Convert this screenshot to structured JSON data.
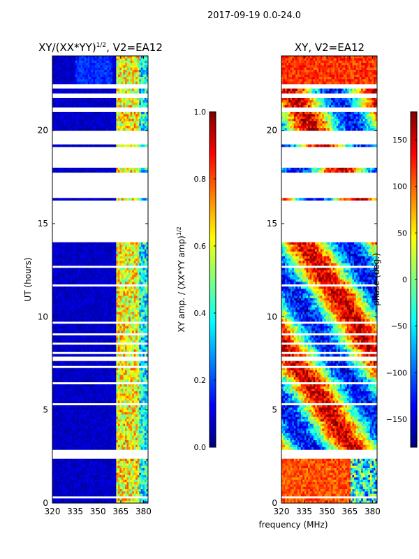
{
  "suptitle": "2017-09-19 0.0-24.0",
  "shared_xlabel": "frequency (MHz)",
  "chart_data": [
    {
      "type": "heatmap",
      "title_main": "XY/(XX*YY)",
      "title_sup": "1/2",
      "title_rest": ", V2=EA12",
      "xlabel": "",
      "ylabel": "UT (hours)",
      "xlim": [
        320,
        383
      ],
      "ylim": [
        0,
        24
      ],
      "xticks": [
        320,
        335,
        350,
        365,
        380
      ],
      "yticks": [
        0,
        5,
        10,
        15,
        20
      ],
      "quantity": "XY amplitude normalized",
      "colormap": "jet",
      "colorbar": {
        "label_main": "XY amp. / (XX*YY amp)",
        "label_sup": "1/2",
        "range": [
          0.0,
          1.0
        ],
        "ticks": [
          "0.0",
          "0.2",
          "0.4",
          "0.6",
          "0.8",
          "1.0"
        ],
        "tick_values": [
          0.0,
          0.2,
          0.4,
          0.6,
          0.8,
          1.0
        ]
      }
    },
    {
      "type": "heatmap",
      "title_main": "XY, V2=EA12",
      "xlabel": "",
      "ylabel": "",
      "xlim": [
        320,
        383
      ],
      "ylim": [
        0,
        24
      ],
      "xticks": [
        320,
        335,
        350,
        365,
        380
      ],
      "yticks": [
        0,
        5,
        10,
        15,
        20
      ],
      "quantity": "XY phase",
      "colormap": "jet",
      "colorbar": {
        "label_main": "phase (deg.)",
        "range": [
          -180,
          180
        ],
        "ticks": [
          "−150",
          "−100",
          "−50",
          "0",
          "50",
          "100",
          "150"
        ],
        "tick_values": [
          -150,
          -100,
          -50,
          0,
          50,
          100,
          150
        ]
      }
    }
  ],
  "data_gaps_ut_hours": [
    [
      2.4,
      2.9
    ],
    [
      14.0,
      16.2
    ],
    [
      16.5,
      17.8
    ],
    [
      18.0,
      19.1
    ],
    [
      19.3,
      20.0
    ],
    [
      21.0,
      21.2
    ],
    [
      21.7,
      22.0
    ],
    [
      22.3,
      22.5
    ]
  ],
  "colors": {
    "jet": [
      "#00007f",
      "#0000ff",
      "#007fff",
      "#00ffff",
      "#7fff7f",
      "#ffff00",
      "#ff7f00",
      "#ff0000",
      "#7f0000"
    ]
  }
}
